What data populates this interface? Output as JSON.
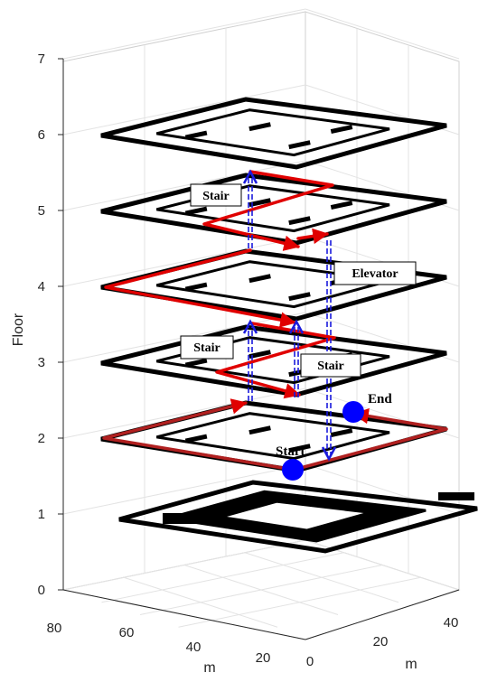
{
  "chart_data": {
    "type": "3d-floor-plan-path",
    "title": "",
    "axes": {
      "z": {
        "label": "Floor",
        "ticks": [
          "0",
          "1",
          "2",
          "3",
          "4",
          "5",
          "6",
          "7"
        ],
        "range": [
          0,
          7
        ]
      },
      "x": {
        "label": "m",
        "ticks": [
          "80",
          "60",
          "40",
          "20"
        ]
      },
      "y": {
        "label": "m",
        "ticks": [
          "0",
          "20",
          "40"
        ]
      }
    },
    "grid": true,
    "floors_shown": [
      1,
      2,
      3,
      4,
      5,
      6
    ],
    "annotations": {
      "stair_upper": "Stair",
      "stair_middle": "Stair",
      "stair_lower": "Stair",
      "elevator": "Elevator"
    },
    "markers": {
      "start": {
        "label": "Start",
        "floor": 2,
        "color": "#0000ff"
      },
      "end": {
        "label": "End",
        "floor": 2,
        "color": "#0000ff"
      }
    },
    "route": {
      "floor_path_color": "#e00000",
      "vertical_link_color": "#1a1adc",
      "vertical_links": [
        "Stair",
        "Stair",
        "Stair",
        "Elevator"
      ]
    },
    "floor_color": "#000000"
  }
}
